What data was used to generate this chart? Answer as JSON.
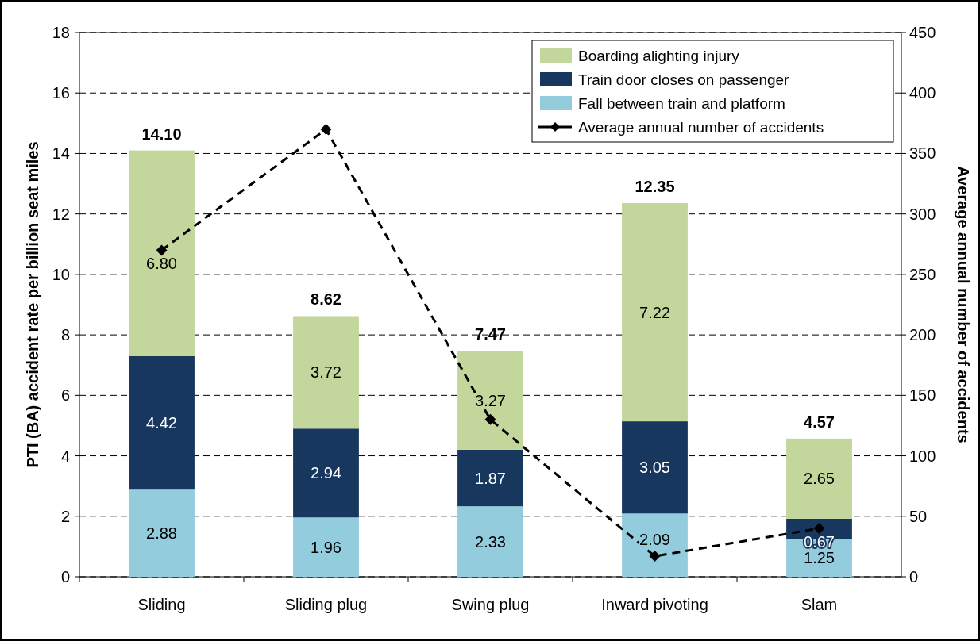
{
  "chart_data": {
    "type": "bar",
    "stacked": true,
    "categories": [
      "Sliding",
      "Sliding plug",
      "Swing plug",
      "Inward pivoting",
      "Slam"
    ],
    "series": [
      {
        "name": "Fall between train and platform",
        "color": "#93cddd",
        "values": [
          2.88,
          1.96,
          2.33,
          2.09,
          1.25
        ],
        "value_labels": [
          "2.88",
          "1.96",
          "2.33",
          "2.09",
          "1.25"
        ]
      },
      {
        "name": "Train door closes on passenger",
        "color": "#17375e",
        "values": [
          4.42,
          2.94,
          1.87,
          3.05,
          0.67
        ],
        "value_labels": [
          "4.42",
          "2.94",
          "1.87",
          "3.05",
          "0.67"
        ]
      },
      {
        "name": "Boarding alighting injury",
        "color": "#c3d69b",
        "values": [
          6.8,
          3.72,
          3.27,
          7.22,
          2.65
        ],
        "value_labels": [
          "6.80",
          "3.72",
          "3.27",
          "7.22",
          "2.65"
        ]
      },
      {
        "name": "Average annual number of accidents",
        "type": "line",
        "axis": "y2",
        "color": "#000000",
        "values": [
          270,
          370,
          130,
          17,
          40
        ],
        "marker": "diamond",
        "line_style": "dashed"
      }
    ],
    "totals": [
      "14.10",
      "8.62",
      "7.47",
      "12.35",
      "4.57"
    ],
    "ylabel": "PTI (BA) accident rate per billion seat miles",
    "y2label": "Average annual number of accidents",
    "ylim": [
      0,
      18
    ],
    "yticks": [
      0,
      2,
      4,
      6,
      8,
      10,
      12,
      14,
      16,
      18
    ],
    "y2lim": [
      0,
      450
    ],
    "y2ticks": [
      0,
      50,
      100,
      150,
      200,
      250,
      300,
      350,
      400,
      450
    ],
    "grid": "y",
    "legend": "top right"
  }
}
